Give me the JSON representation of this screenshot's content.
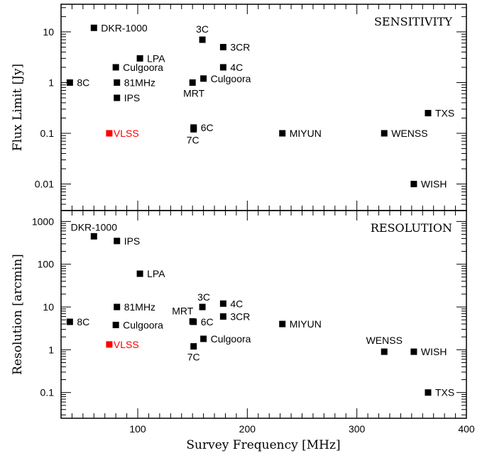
{
  "figure": {
    "xlabel": "Survey Frequency [MHz]",
    "x_ticks": [
      "100",
      "200",
      "300",
      "400"
    ]
  },
  "chart_data": [
    {
      "type": "scatter",
      "title": "SENSITIVITY",
      "xlabel": "Survey Frequency [MHz]",
      "ylabel": "Flux Limit [Jy]",
      "xlim": [
        30,
        400
      ],
      "ylim": [
        0.003,
        35
      ],
      "yscale": "log",
      "y_ticks": [
        "0.01",
        "0.1",
        "1",
        "10"
      ],
      "points": [
        {
          "label": "DKR-1000",
          "x": 60,
          "y": 12,
          "color": "#000000"
        },
        {
          "label": "3C",
          "x": 159,
          "y": 7,
          "color": "#000000"
        },
        {
          "label": "3CR",
          "x": 178,
          "y": 5,
          "color": "#000000"
        },
        {
          "label": "LPA",
          "x": 102,
          "y": 3,
          "color": "#000000"
        },
        {
          "label": "4C",
          "x": 178,
          "y": 2,
          "color": "#000000"
        },
        {
          "label": "Culgoora",
          "x": 80,
          "y": 2,
          "color": "#000000"
        },
        {
          "label": "Culgoora",
          "x": 160,
          "y": 1.2,
          "color": "#000000"
        },
        {
          "label": "8C",
          "x": 38,
          "y": 1,
          "color": "#000000"
        },
        {
          "label": "81MHz",
          "x": 81,
          "y": 1,
          "color": "#000000"
        },
        {
          "label": "MRT",
          "x": 150,
          "y": 1,
          "color": "#000000"
        },
        {
          "label": "IPS",
          "x": 81,
          "y": 0.5,
          "color": "#000000"
        },
        {
          "label": "TXS",
          "x": 365,
          "y": 0.25,
          "color": "#000000"
        },
        {
          "label": "6C",
          "x": 151,
          "y": 0.13,
          "color": "#000000"
        },
        {
          "label": "7C",
          "x": 151,
          "y": 0.12,
          "color": "#000000"
        },
        {
          "label": "VLSS",
          "x": 74,
          "y": 0.1,
          "color": "#ff0000"
        },
        {
          "label": "MIYUN",
          "x": 232,
          "y": 0.1,
          "color": "#000000"
        },
        {
          "label": "WENSS",
          "x": 325,
          "y": 0.1,
          "color": "#000000"
        },
        {
          "label": "WISH",
          "x": 352,
          "y": 0.01,
          "color": "#000000"
        }
      ]
    },
    {
      "type": "scatter",
      "title": "RESOLUTION",
      "xlabel": "Survey Frequency [MHz]",
      "ylabel": "Resolution [arcmin]",
      "xlim": [
        30,
        400
      ],
      "ylim": [
        0.025,
        1800
      ],
      "yscale": "log",
      "y_ticks": [
        "0.1",
        "1",
        "10",
        "100",
        "1000"
      ],
      "points": [
        {
          "label": "DKR-1000",
          "x": 60,
          "y": 450,
          "color": "#000000"
        },
        {
          "label": "IPS",
          "x": 81,
          "y": 350,
          "color": "#000000"
        },
        {
          "label": "LPA",
          "x": 102,
          "y": 60,
          "color": "#000000"
        },
        {
          "label": "4C",
          "x": 178,
          "y": 12,
          "color": "#000000"
        },
        {
          "label": "3C",
          "x": 159,
          "y": 10,
          "color": "#000000"
        },
        {
          "label": "81MHz",
          "x": 81,
          "y": 10,
          "color": "#000000"
        },
        {
          "label": "3CR",
          "x": 178,
          "y": 6,
          "color": "#000000"
        },
        {
          "label": "MRT",
          "x": 150,
          "y": 4.6,
          "color": "#000000"
        },
        {
          "label": "6C",
          "x": 151,
          "y": 4.5,
          "color": "#000000"
        },
        {
          "label": "8C",
          "x": 38,
          "y": 4.5,
          "color": "#000000"
        },
        {
          "label": "MIYUN",
          "x": 232,
          "y": 4,
          "color": "#000000"
        },
        {
          "label": "Culgoora",
          "x": 80,
          "y": 3.8,
          "color": "#000000"
        },
        {
          "label": "Culgoora",
          "x": 160,
          "y": 1.8,
          "color": "#000000"
        },
        {
          "label": "VLSS",
          "x": 74,
          "y": 1.33,
          "color": "#ff0000"
        },
        {
          "label": "7C",
          "x": 151,
          "y": 1.2,
          "color": "#000000"
        },
        {
          "label": "WENSS",
          "x": 325,
          "y": 0.9,
          "color": "#000000"
        },
        {
          "label": "WISH",
          "x": 352,
          "y": 0.9,
          "color": "#000000"
        },
        {
          "label": "TXS",
          "x": 365,
          "y": 0.1,
          "color": "#000000"
        }
      ]
    }
  ]
}
